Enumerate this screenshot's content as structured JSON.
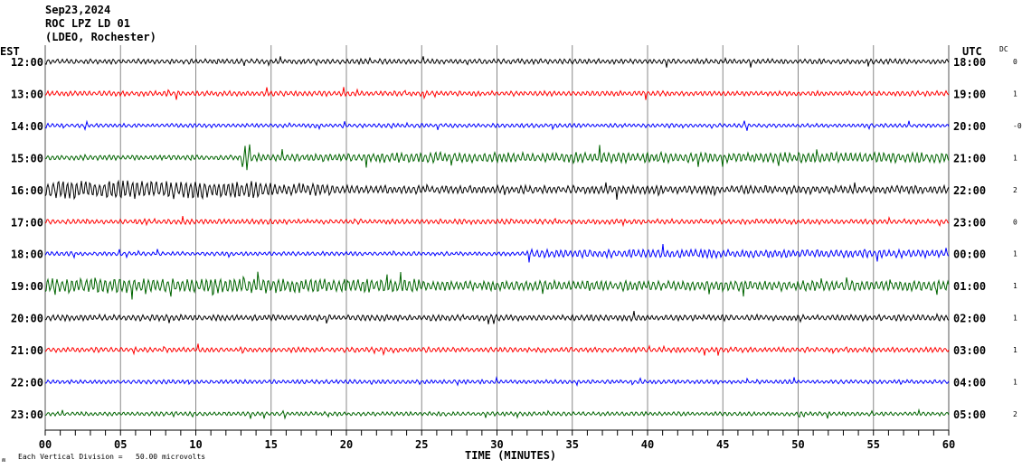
{
  "header": {
    "date": "Sep23,2024",
    "station": "ROC LPZ LD 01",
    "network": "(LDEO, Rochester)"
  },
  "chart_data": {
    "type": "line",
    "title": "",
    "left_axis_label": "EST",
    "right_axis_label": "UTC",
    "dc_label": "DC",
    "xlabel": "TIME (MINUTES)",
    "xlim": [
      0,
      60
    ],
    "x_tick_labels": [
      "00",
      "05",
      "10",
      "15",
      "20",
      "25",
      "30",
      "35",
      "40",
      "45",
      "50",
      "55",
      "60"
    ],
    "x_minor_tick_interval_minutes": 1,
    "grid": "vertical every 5 minutes",
    "scale_note": "Each Vertical Division =   50.00 microvolts",
    "corner_mark": "ʍ",
    "rows": [
      {
        "est": "12:00",
        "utc": "18:00",
        "dc": "0",
        "color": "#000000"
      },
      {
        "est": "13:00",
        "utc": "19:00",
        "dc": "1",
        "color": "#ff0000"
      },
      {
        "est": "14:00",
        "utc": "20:00",
        "dc": "-0",
        "color": "#0000ff"
      },
      {
        "est": "15:00",
        "utc": "21:00",
        "dc": "1",
        "color": "#006400"
      },
      {
        "est": "16:00",
        "utc": "22:00",
        "dc": "2",
        "color": "#000000"
      },
      {
        "est": "17:00",
        "utc": "23:00",
        "dc": "0",
        "color": "#ff0000"
      },
      {
        "est": "18:00",
        "utc": "00:00",
        "dc": "1",
        "color": "#0000ff"
      },
      {
        "est": "19:00",
        "utc": "01:00",
        "dc": "1",
        "color": "#006400"
      },
      {
        "est": "20:00",
        "utc": "02:00",
        "dc": "1",
        "color": "#000000"
      },
      {
        "est": "21:00",
        "utc": "03:00",
        "dc": "1",
        "color": "#ff0000"
      },
      {
        "est": "22:00",
        "utc": "04:00",
        "dc": "1",
        "color": "#0000ff"
      },
      {
        "est": "23:00",
        "utc": "05:00",
        "dc": "2",
        "color": "#006400"
      }
    ]
  }
}
